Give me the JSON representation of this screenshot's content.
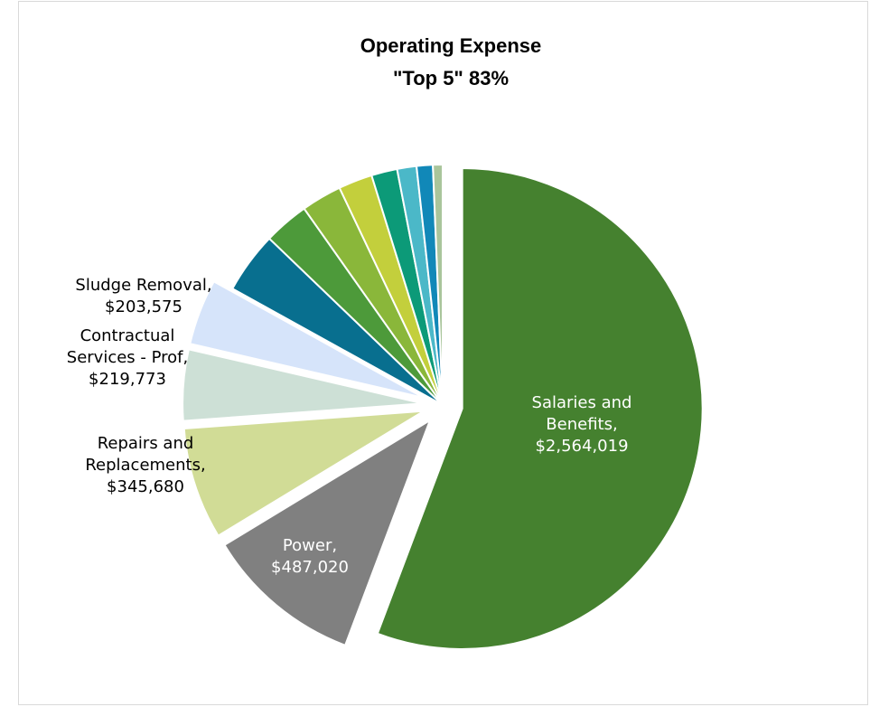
{
  "chart_data": {
    "type": "pie",
    "title_lines": [
      "Operating Expense",
      "\"Top 5\" 83%"
    ],
    "legend": "none",
    "slices": [
      {
        "name": "Salaries and Benefits",
        "value": 2564019,
        "color": "#45812f",
        "label_lines": [
          "Salaries and",
          "Benefits,",
          "$2,564,019"
        ],
        "exploded": true
      },
      {
        "name": "Power",
        "value": 487020,
        "color": "#808080",
        "label_lines": [
          "Power,",
          "$487,020"
        ],
        "exploded": true
      },
      {
        "name": "Repairs and Replacements",
        "value": 345680,
        "color": "#d1dc96",
        "label_lines": [
          "Repairs and",
          "Replacements,",
          "$345,680"
        ],
        "exploded": true
      },
      {
        "name": "Contractual Services - Prof",
        "value": 219773,
        "color": "#cde0d6",
        "label_lines": [
          "Contractual",
          "Services - Prof,",
          "$219,773"
        ],
        "exploded": true
      },
      {
        "name": "Sludge Removal",
        "value": 203575,
        "color": "#d6e4fa",
        "label_lines": [
          "Sludge Removal,",
          "$203,575"
        ],
        "exploded": true
      },
      {
        "name": "",
        "value": 190000,
        "color": "#086f8f",
        "label_lines": [],
        "exploded": false
      },
      {
        "name": "",
        "value": 140000,
        "color": "#4d9a3a",
        "label_lines": [],
        "exploded": false
      },
      {
        "name": "",
        "value": 125000,
        "color": "#8ab73a",
        "label_lines": [],
        "exploded": false
      },
      {
        "name": "",
        "value": 105000,
        "color": "#c3cf3c",
        "label_lines": [],
        "exploded": false
      },
      {
        "name": "",
        "value": 80000,
        "color": "#0c9a78",
        "label_lines": [],
        "exploded": false
      },
      {
        "name": "",
        "value": 60000,
        "color": "#4bb8c8",
        "label_lines": [],
        "exploded": false
      },
      {
        "name": "",
        "value": 50000,
        "color": "#1188b8",
        "label_lines": [],
        "exploded": false
      },
      {
        "name": "",
        "value": 30000,
        "color": "#a9c59b",
        "label_lines": [],
        "exploded": false
      }
    ]
  }
}
